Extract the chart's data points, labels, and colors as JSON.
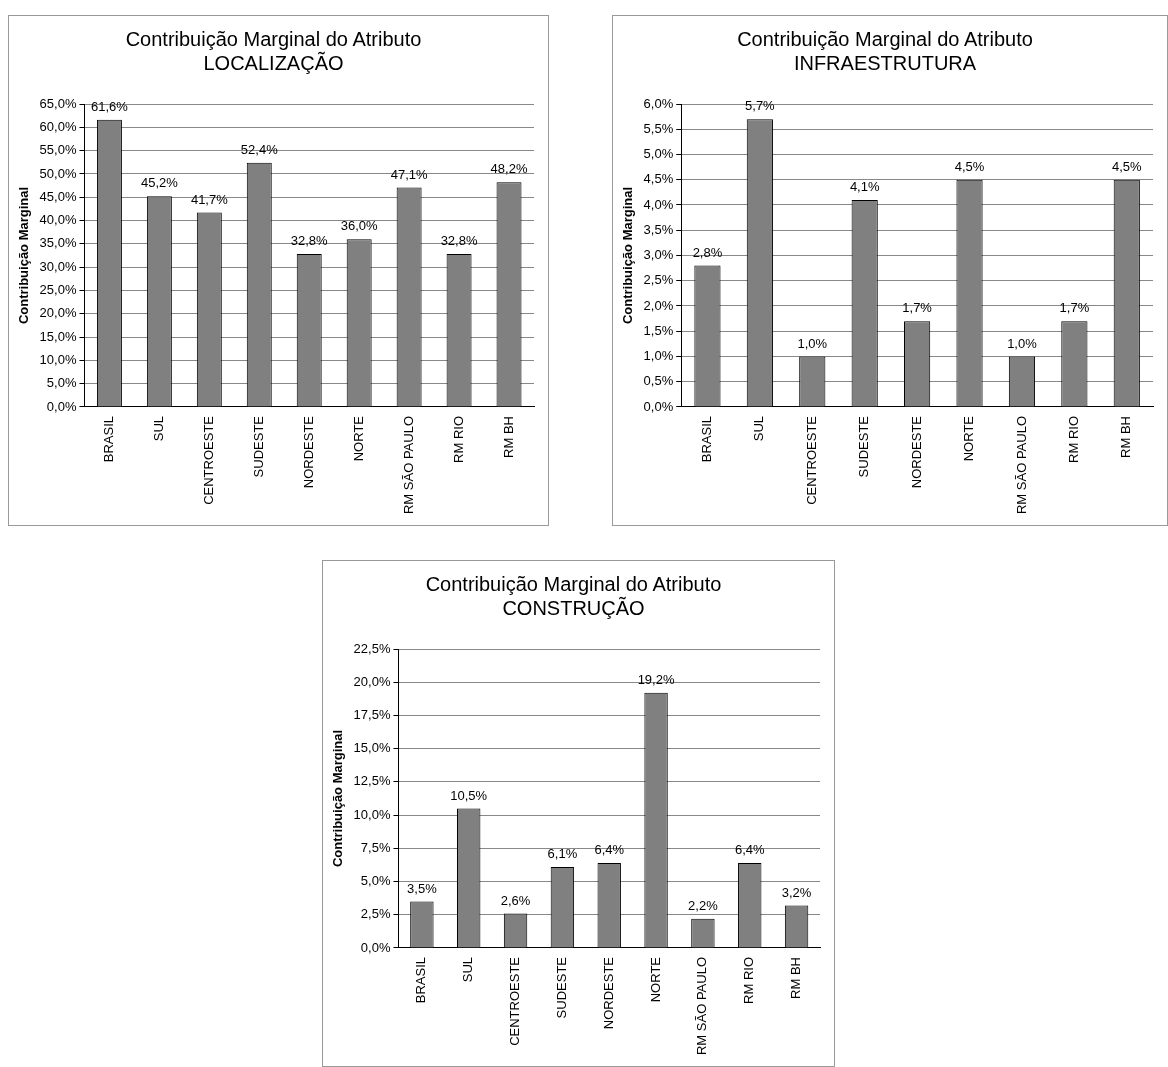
{
  "chart_data": [
    {
      "type": "bar",
      "title": "Contribuição Marginal do Atributo",
      "subtitle": "LOCALIZAÇÃO",
      "ylabel": "Contribuição Marginal",
      "categories": [
        "BRASIL",
        "SUL",
        "CENTROESTE",
        "SUDESTE",
        "NORDESTE",
        "NORTE",
        "RM SÃO PAULO",
        "RM RIO",
        "RM BH"
      ],
      "values": [
        61.6,
        45.2,
        41.7,
        52.4,
        32.8,
        36.0,
        47.1,
        32.8,
        48.2
      ],
      "value_labels": [
        "61,6%",
        "45,2%",
        "41,7%",
        "52,4%",
        "32,8%",
        "36,0%",
        "47,1%",
        "32,8%",
        "48,2%"
      ],
      "color": "#808080",
      "ylim": [
        0,
        65
      ],
      "yticks": [
        {
          "value": 0,
          "label": "0,0%"
        },
        {
          "value": 5,
          "label": "5,0%"
        },
        {
          "value": 10,
          "label": "10,0%"
        },
        {
          "value": 15,
          "label": "15,0%"
        },
        {
          "value": 20,
          "label": "20,0%"
        },
        {
          "value": 25,
          "label": "25,0%"
        },
        {
          "value": 30,
          "label": "30,0%"
        },
        {
          "value": 35,
          "label": "35,0%"
        },
        {
          "value": 40,
          "label": "40,0%"
        },
        {
          "value": 45,
          "label": "45,0%"
        },
        {
          "value": 50,
          "label": "50,0%"
        },
        {
          "value": 55,
          "label": "55,0%"
        },
        {
          "value": 60,
          "label": "60,0%"
        },
        {
          "value": 65,
          "label": "65,0%"
        }
      ],
      "grid": "y",
      "legend": false
    },
    {
      "type": "bar",
      "title": "Contribuição Marginal do Atributo",
      "subtitle": "INFRAESTRUTURA",
      "ylabel": "Contribuição Marginal",
      "categories": [
        "BRASIL",
        "SUL",
        "CENTROESTE",
        "SUDESTE",
        "NORDESTE",
        "NORTE",
        "RM SÃO PAULO",
        "RM RIO",
        "RM BH"
      ],
      "values": [
        2.8,
        5.7,
        1.0,
        4.1,
        1.7,
        4.5,
        1.0,
        1.7,
        4.5
      ],
      "value_labels": [
        "2,8%",
        "5,7%",
        "1,0%",
        "4,1%",
        "1,7%",
        "4,5%",
        "1,0%",
        "1,7%",
        "4,5%"
      ],
      "color": "#808080",
      "ylim": [
        0,
        6
      ],
      "yticks": [
        {
          "value": 0,
          "label": "0,0%"
        },
        {
          "value": 0.5,
          "label": "0,5%"
        },
        {
          "value": 1,
          "label": "1,0%"
        },
        {
          "value": 1.5,
          "label": "1,5%"
        },
        {
          "value": 2,
          "label": "2,0%"
        },
        {
          "value": 2.5,
          "label": "2,5%"
        },
        {
          "value": 3,
          "label": "3,0%"
        },
        {
          "value": 3.5,
          "label": "3,5%"
        },
        {
          "value": 4,
          "label": "4,0%"
        },
        {
          "value": 4.5,
          "label": "4,5%"
        },
        {
          "value": 5,
          "label": "5,0%"
        },
        {
          "value": 5.5,
          "label": "5,5%"
        },
        {
          "value": 6,
          "label": "6,0%"
        }
      ],
      "grid": "y",
      "legend": false
    },
    {
      "type": "bar",
      "title": "Contribuição Marginal do Atributo",
      "subtitle": "CONSTRUÇÃO",
      "ylabel": "Contribuição Marginal",
      "categories": [
        "BRASIL",
        "SUL",
        "CENTROESTE",
        "SUDESTE",
        "NORDESTE",
        "NORTE",
        "RM SÃO PAULO",
        "RM RIO",
        "RM BH"
      ],
      "values": [
        3.5,
        10.5,
        2.6,
        6.1,
        6.4,
        19.2,
        2.2,
        6.4,
        3.2
      ],
      "value_labels": [
        "3,5%",
        "10,5%",
        "2,6%",
        "6,1%",
        "6,4%",
        "19,2%",
        "2,2%",
        "6,4%",
        "3,2%"
      ],
      "color": "#808080",
      "ylim": [
        0,
        22.5
      ],
      "yticks": [
        {
          "value": 0,
          "label": "0,0%"
        },
        {
          "value": 2.5,
          "label": "2,5%"
        },
        {
          "value": 5,
          "label": "5,0%"
        },
        {
          "value": 7.5,
          "label": "7,5%"
        },
        {
          "value": 10,
          "label": "10,0%"
        },
        {
          "value": 12.5,
          "label": "12,5%"
        },
        {
          "value": 15,
          "label": "15,0%"
        },
        {
          "value": 17.5,
          "label": "17,5%"
        },
        {
          "value": 20,
          "label": "20,0%"
        },
        {
          "value": 22.5,
          "label": "22,5%"
        }
      ],
      "grid": "y",
      "legend": false
    }
  ]
}
